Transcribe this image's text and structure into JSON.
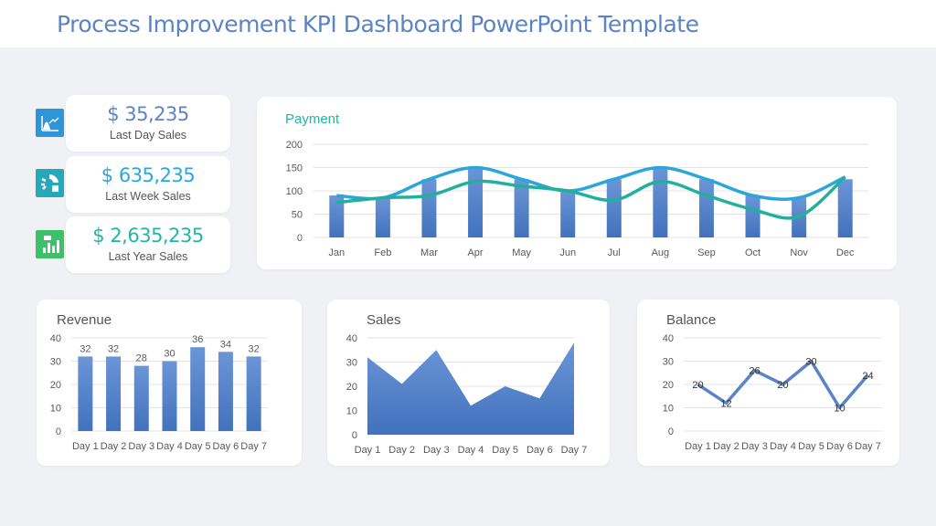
{
  "header": {
    "title": "Process Improvement KPI Dashboard PowerPoint Template"
  },
  "kpis": [
    {
      "value": "$ 35,235",
      "label": "Last Day Sales",
      "color": "#5b84c4",
      "icon": "area-chart-icon",
      "icon_color": "#2f95d6"
    },
    {
      "value": "$ 635,235",
      "label": "Last Week Sales",
      "color": "#29a8e0",
      "icon": "pie-calculator-icon",
      "icon_color": "#25a9b8"
    },
    {
      "value": "$ 2,635,235",
      "label": "Last Year Sales",
      "color": "#22b6a4",
      "icon": "bar-chart-icon",
      "icon_color": "#3cc06a"
    }
  ],
  "chart_data": [
    {
      "type": "bar+line",
      "title": "Payment",
      "title_color": "#22b6a4",
      "categories": [
        "Jan",
        "Feb",
        "Mar",
        "Apr",
        "May",
        "Jun",
        "Jul",
        "Aug",
        "Sep",
        "Oct",
        "Nov",
        "Dec"
      ],
      "ylim": [
        0,
        200
      ],
      "yticks": [
        0,
        50,
        100,
        150,
        200
      ],
      "grid": true,
      "bars": [
        90,
        85,
        125,
        150,
        125,
        100,
        125,
        150,
        125,
        90,
        85,
        125
      ],
      "series": [
        {
          "values": [
            90,
            85,
            125,
            150,
            125,
            100,
            125,
            150,
            125,
            90,
            85,
            130
          ],
          "color": "#2aa6dc"
        },
        {
          "values": [
            75,
            85,
            90,
            120,
            110,
            100,
            80,
            120,
            90,
            60,
            45,
            130
          ],
          "color": "#22b09e"
        }
      ]
    },
    {
      "type": "bar",
      "title": "Revenue",
      "categories": [
        "Day 1",
        "Day 2",
        "Day 3",
        "Day 4",
        "Day 5",
        "Day 6",
        "Day 7"
      ],
      "values": [
        32,
        32,
        28,
        30,
        36,
        34,
        32
      ],
      "ylim": [
        0,
        40
      ],
      "yticks": [
        0,
        10,
        20,
        30,
        40
      ],
      "data_labels": true
    },
    {
      "type": "area",
      "title": "Sales",
      "categories": [
        "Day 1",
        "Day 2",
        "Day 3",
        "Day 4",
        "Day 5",
        "Day 6",
        "Day 7"
      ],
      "values": [
        32,
        21,
        35,
        12,
        20,
        15,
        38
      ],
      "ylim": [
        0,
        40
      ],
      "yticks": [
        0,
        10,
        20,
        30,
        40
      ]
    },
    {
      "type": "line",
      "title": "Balance",
      "categories": [
        "Day 1",
        "Day 2",
        "Day 3",
        "Day 4",
        "Day 5",
        "Day 6",
        "Day 7"
      ],
      "values": [
        20,
        12,
        26,
        20,
        30,
        10,
        24
      ],
      "ylim": [
        0,
        40
      ],
      "yticks": [
        0,
        10,
        20,
        30,
        40
      ],
      "data_labels": true
    }
  ]
}
